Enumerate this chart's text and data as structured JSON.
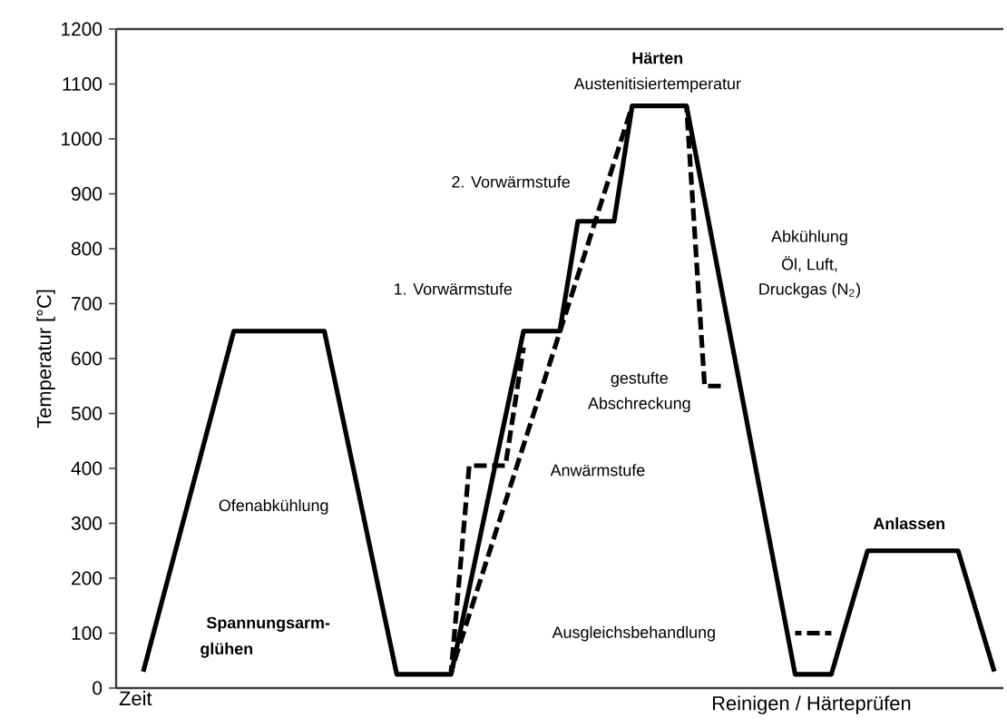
{
  "chart_data": {
    "type": "line",
    "xlabel": "Zeit",
    "ylabel": "Temperatur [°C]",
    "ylim": [
      0,
      1200
    ],
    "yticks": [
      0,
      100,
      200,
      300,
      400,
      500,
      600,
      700,
      800,
      900,
      1000,
      1100,
      1200
    ],
    "tick_labels": "y",
    "marker": "none",
    "categories": [
      null,
      null,
      null,
      null,
      null,
      null,
      null,
      null,
      null,
      null,
      null,
      null,
      null,
      null,
      null,
      null,
      null,
      null,
      null,
      null,
      null,
      null,
      null,
      null,
      null,
      null,
      null,
      null,
      null,
      null,
      null,
      null,
      null,
      null,
      null,
      null,
      null,
      null,
      null,
      null,
      null,
      null,
      null,
      null,
      null,
      null,
      null,
      null,
      null
    ],
    "series": [
      {
        "color": "#000000",
        "line_style": "solid",
        "values": [
          null,
          30,
          154,
          278,
          402,
          526,
          650,
          650,
          650,
          650,
          650,
          650,
          494,
          338,
          181,
          25,
          25,
          25,
          25,
          181,
          338,
          494,
          650,
          650,
          650,
          850,
          850,
          850,
          1060,
          1060,
          1060,
          1060,
          888,
          715,
          543,
          370,
          198,
          25,
          25,
          25,
          138,
          250,
          250,
          250,
          250,
          250,
          250,
          140,
          30
        ]
      },
      {
        "color": "#000000",
        "line_style": "dashed",
        "values": [
          null,
          null,
          null,
          null,
          null,
          null,
          null,
          null,
          null,
          null,
          null,
          null,
          null,
          null,
          null,
          null,
          null,
          null,
          30,
          405,
          405,
          405,
          620,
          null,
          null,
          null,
          null,
          null,
          null,
          null,
          null,
          null,
          null,
          null,
          null,
          null,
          null,
          null,
          null,
          null,
          null,
          null,
          null,
          null,
          null,
          null,
          null,
          null,
          null
        ]
      },
      {
        "color": "#000000",
        "line_style": "dashed",
        "values": [
          null,
          null,
          null,
          null,
          null,
          null,
          null,
          null,
          null,
          null,
          null,
          null,
          null,
          null,
          null,
          null,
          null,
          null,
          30,
          133,
          236,
          339,
          442,
          545,
          648,
          751,
          854,
          957,
          1060,
          null,
          null,
          null,
          null,
          null,
          null,
          null,
          null,
          null,
          null,
          null,
          null,
          null,
          null,
          null,
          null,
          null,
          null,
          null,
          null
        ]
      },
      {
        "color": "#000000",
        "line_style": "dashed",
        "values": [
          null,
          null,
          null,
          null,
          null,
          null,
          null,
          null,
          null,
          null,
          null,
          null,
          null,
          null,
          null,
          null,
          null,
          null,
          null,
          null,
          null,
          null,
          null,
          null,
          null,
          null,
          null,
          null,
          null,
          null,
          null,
          1060,
          550,
          550,
          null,
          null,
          null,
          null,
          null,
          null,
          null,
          null,
          null,
          null,
          null,
          null,
          null,
          null,
          null
        ]
      },
      {
        "color": "#000000",
        "line_style": "dashed",
        "values": [
          null,
          null,
          null,
          null,
          null,
          null,
          null,
          null,
          null,
          null,
          null,
          null,
          null,
          null,
          null,
          null,
          null,
          null,
          null,
          null,
          null,
          null,
          null,
          null,
          null,
          null,
          null,
          null,
          null,
          null,
          null,
          null,
          null,
          null,
          null,
          null,
          null,
          100,
          100,
          100,
          null,
          null,
          null,
          null,
          null,
          null,
          null,
          null,
          null
        ]
      }
    ],
    "annotations": [
      "**Härten**",
      "Austenitisiertemperatur",
      "2. Vorwärmstufe",
      "1. Vorwärmstufe",
      "Abkühlung",
      "Öl, Luft,",
      "Druckgas (N$_{2}$)",
      "gestufte",
      "Abschreckung",
      "Anwärmstufe",
      "Ausgleichsbehandlung",
      "**Anlassen**",
      "Ofenabkühlung",
      "**Spannungsarm-**",
      "**glühen**",
      "Reinigen / Härteprüfen"
    ]
  }
}
